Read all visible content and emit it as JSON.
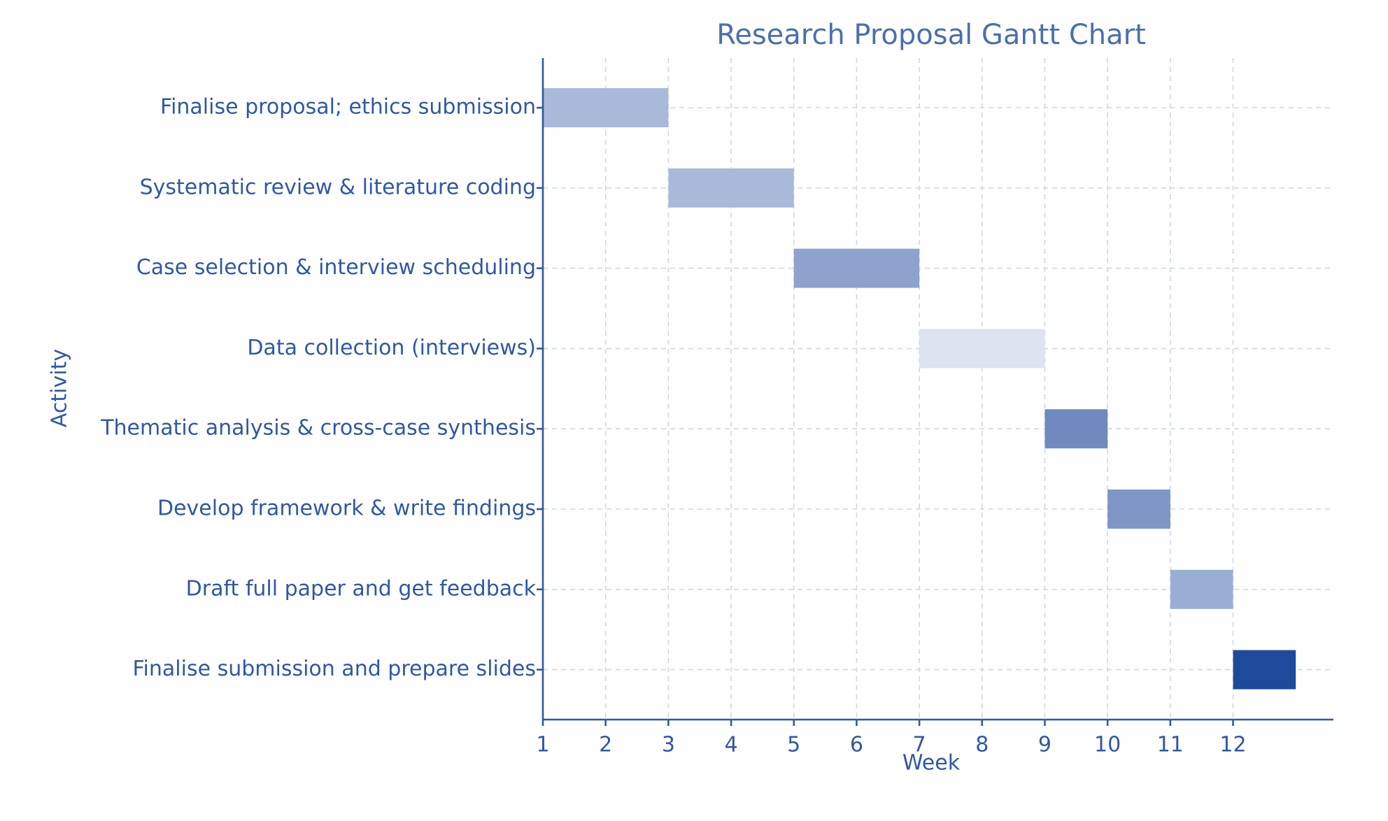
{
  "chart_data": {
    "type": "bar",
    "orientation": "horizontal",
    "title": "Research Proposal Gantt Chart",
    "xlabel": "Week",
    "ylabel": "Activity",
    "xlim": [
      1,
      13.6
    ],
    "xticks": [
      1,
      2,
      3,
      4,
      5,
      6,
      7,
      8,
      9,
      10,
      11,
      12
    ],
    "grid": true,
    "tasks": [
      {
        "label": "Finalise proposal; ethics submission",
        "start": 1,
        "end": 3,
        "color": "#aab9da"
      },
      {
        "label": "Systematic review & literature coding",
        "start": 3,
        "end": 5,
        "color": "#aab9da"
      },
      {
        "label": "Case selection & interview scheduling",
        "start": 5,
        "end": 7,
        "color": "#8ea2cd"
      },
      {
        "label": "Data collection (interviews)",
        "start": 7,
        "end": 9,
        "color": "#dde3f1"
      },
      {
        "label": "Thematic analysis & cross-case synthesis",
        "start": 9,
        "end": 10,
        "color": "#7089bf"
      },
      {
        "label": "Develop framework & write findings",
        "start": 10,
        "end": 11,
        "color": "#7e95c6"
      },
      {
        "label": "Draft full paper and get feedback",
        "start": 11,
        "end": 12,
        "color": "#9aaed5"
      },
      {
        "label": "Finalise submission and prepare slides",
        "start": 12,
        "end": 13,
        "color": "#1e4a9c"
      }
    ]
  }
}
